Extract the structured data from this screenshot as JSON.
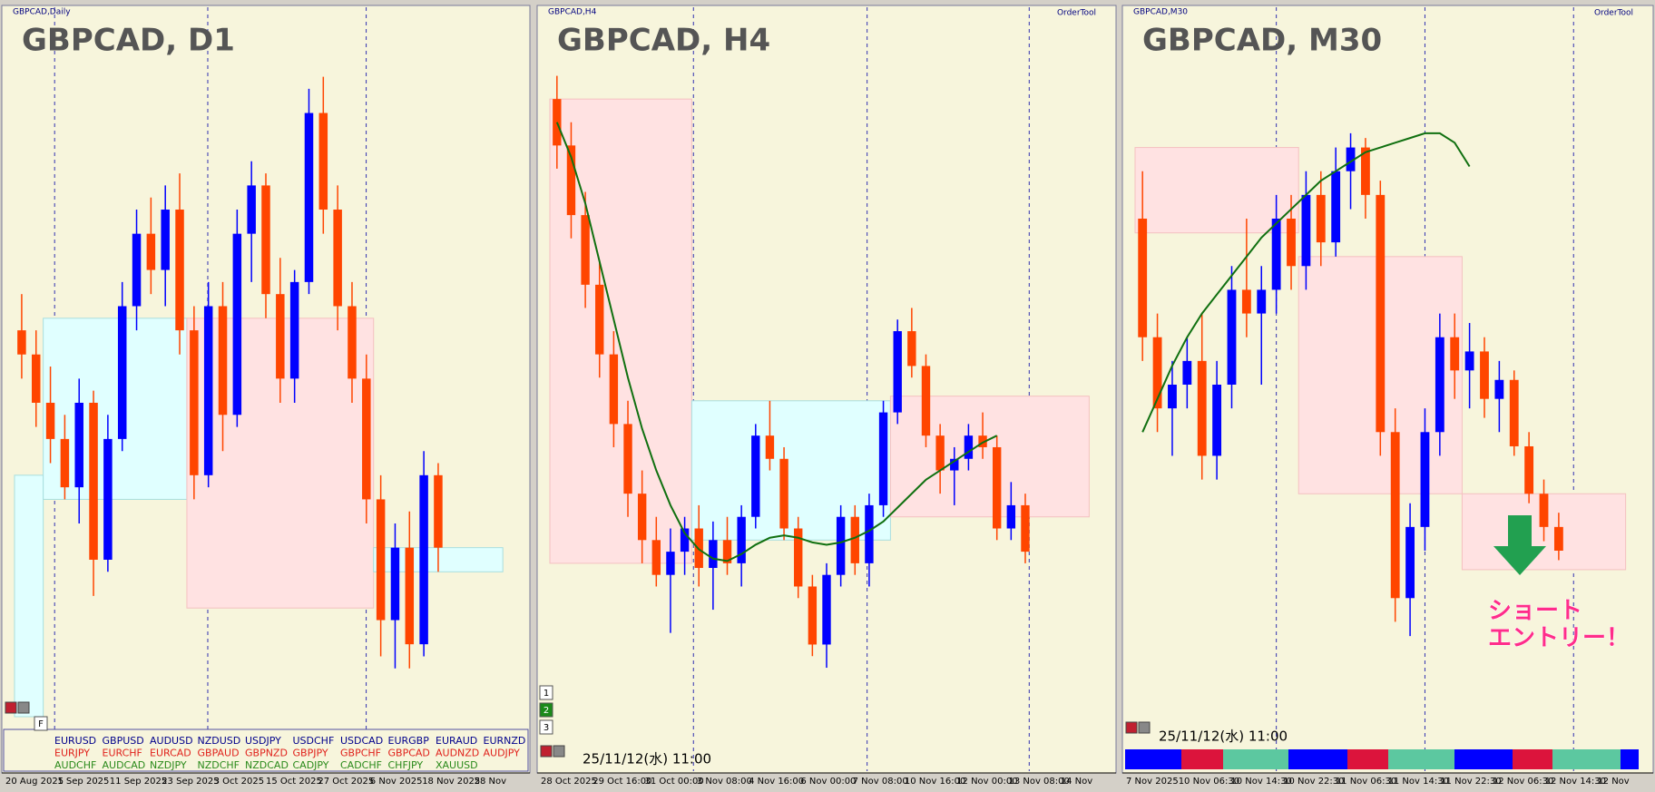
{
  "chart_data": [
    {
      "type": "candlestick",
      "title": "GBPCAD, D1",
      "window_label": "GBPCAD,Daily",
      "up_color": "#0000ff",
      "down_color": "#ff4500",
      "ylim": [
        1.82,
        1.875
      ],
      "x_labels": [
        "20 Aug 2025",
        "1 Sep 2025",
        "11 Sep 2025",
        "23 Sep 2025",
        "3 Oct 2025",
        "15 Oct 2025",
        "27 Oct 2025",
        "6 Nov 2025",
        "18 Nov 2025",
        "28 Nov"
      ],
      "candles": [
        [
          1.852,
          1.855,
          1.848,
          1.85
        ],
        [
          1.85,
          1.852,
          1.844,
          1.846
        ],
        [
          1.846,
          1.849,
          1.841,
          1.843
        ],
        [
          1.843,
          1.845,
          1.838,
          1.839
        ],
        [
          1.839,
          1.848,
          1.836,
          1.846
        ],
        [
          1.846,
          1.847,
          1.83,
          1.833
        ],
        [
          1.833,
          1.845,
          1.832,
          1.843
        ],
        [
          1.843,
          1.856,
          1.842,
          1.854
        ],
        [
          1.854,
          1.862,
          1.852,
          1.86
        ],
        [
          1.86,
          1.863,
          1.855,
          1.857
        ],
        [
          1.857,
          1.864,
          1.854,
          1.862
        ],
        [
          1.862,
          1.865,
          1.85,
          1.852
        ],
        [
          1.852,
          1.854,
          1.838,
          1.84
        ],
        [
          1.84,
          1.856,
          1.839,
          1.854
        ],
        [
          1.854,
          1.856,
          1.842,
          1.845
        ],
        [
          1.845,
          1.862,
          1.844,
          1.86
        ],
        [
          1.86,
          1.866,
          1.856,
          1.864
        ],
        [
          1.864,
          1.865,
          1.853,
          1.855
        ],
        [
          1.855,
          1.858,
          1.846,
          1.848
        ],
        [
          1.848,
          1.857,
          1.846,
          1.856
        ],
        [
          1.856,
          1.872,
          1.855,
          1.87
        ],
        [
          1.87,
          1.873,
          1.86,
          1.862
        ],
        [
          1.862,
          1.864,
          1.852,
          1.854
        ],
        [
          1.854,
          1.856,
          1.846,
          1.848
        ],
        [
          1.848,
          1.85,
          1.836,
          1.838
        ],
        [
          1.838,
          1.84,
          1.825,
          1.828
        ],
        [
          1.828,
          1.836,
          1.824,
          1.834
        ],
        [
          1.834,
          1.837,
          1.824,
          1.826
        ],
        [
          1.826,
          1.842,
          1.825,
          1.84
        ],
        [
          1.84,
          1.841,
          1.832,
          1.834
        ]
      ],
      "zones": [
        {
          "from": 0,
          "to": 2,
          "low": 1.82,
          "high": 1.84,
          "color": "#e0ffff"
        },
        {
          "from": 2,
          "to": 12,
          "low": 1.838,
          "high": 1.853,
          "color": "#e0ffff"
        },
        {
          "from": 12,
          "to": 25,
          "low": 1.829,
          "high": 1.853,
          "color": "#ffe2e2"
        },
        {
          "from": 25,
          "to": 34,
          "low": 1.832,
          "high": 1.834,
          "color": "#e0ffff"
        }
      ],
      "pairs": [
        {
          "color": "#00008b",
          "names": [
            "EURUSD",
            "GBPUSD",
            "AUDUSD",
            "NZDUSD",
            "USDJPY",
            "USDCHF",
            "USDCAD",
            "EURGBP",
            "EURAUD",
            "EURNZD"
          ]
        },
        {
          "color": "#e0201a",
          "names": [
            "EURJPY",
            "EURCHF",
            "EURCAD",
            "GBPAUD",
            "GBPNZD",
            "GBPJPY",
            "GBPCHF",
            "GBPCAD",
            "AUDNZD",
            "AUDJPY"
          ]
        },
        {
          "color": "#2a8a1a",
          "names": [
            "AUDCHF",
            "AUDCAD",
            "NZDJPY",
            "NZDCHF",
            "NZDCAD",
            "CADJPY",
            "CADCHF",
            "CHFJPY",
            "XAUUSD"
          ]
        }
      ],
      "buttons": [
        "F"
      ]
    },
    {
      "type": "candlestick",
      "title": "GBPCAD, H4",
      "window_label": "GBPCAD,H4",
      "tool_label": "OrderTool",
      "up_color": "#0000ff",
      "down_color": "#ff4500",
      "ma_color": "#107010",
      "ylim": [
        1.833,
        1.862
      ],
      "x_labels": [
        "28 Oct 2025",
        "29 Oct 16:00",
        "31 Oct 00:00",
        "3 Nov 08:00",
        "4 Nov 16:00",
        "6 Nov 00:00",
        "7 Nov 08:00",
        "10 Nov 16:00",
        "12 Nov 00:00",
        "13 Nov 08:00",
        "14 Nov"
      ],
      "candles": [
        [
          1.86,
          1.861,
          1.857,
          1.858
        ],
        [
          1.858,
          1.859,
          1.854,
          1.855
        ],
        [
          1.855,
          1.856,
          1.851,
          1.852
        ],
        [
          1.852,
          1.853,
          1.848,
          1.849
        ],
        [
          1.849,
          1.85,
          1.845,
          1.846
        ],
        [
          1.846,
          1.847,
          1.842,
          1.843
        ],
        [
          1.843,
          1.844,
          1.84,
          1.841
        ],
        [
          1.841,
          1.842,
          1.839,
          1.8395
        ],
        [
          1.8395,
          1.8415,
          1.837,
          1.8405
        ],
        [
          1.8405,
          1.842,
          1.8395,
          1.8415
        ],
        [
          1.8415,
          1.8425,
          1.839,
          1.8398
        ],
        [
          1.8398,
          1.8418,
          1.838,
          1.841
        ],
        [
          1.841,
          1.842,
          1.8395,
          1.84
        ],
        [
          1.84,
          1.8425,
          1.839,
          1.842
        ],
        [
          1.842,
          1.846,
          1.8415,
          1.8455
        ],
        [
          1.8455,
          1.847,
          1.844,
          1.8445
        ],
        [
          1.8445,
          1.845,
          1.841,
          1.8415
        ],
        [
          1.8415,
          1.842,
          1.8385,
          1.839
        ],
        [
          1.839,
          1.8395,
          1.836,
          1.8365
        ],
        [
          1.8365,
          1.84,
          1.8355,
          1.8395
        ],
        [
          1.8395,
          1.8425,
          1.839,
          1.842
        ],
        [
          1.842,
          1.8425,
          1.8395,
          1.84
        ],
        [
          1.84,
          1.843,
          1.839,
          1.8425
        ],
        [
          1.8425,
          1.847,
          1.842,
          1.8465
        ],
        [
          1.8465,
          1.8505,
          1.846,
          1.85
        ],
        [
          1.85,
          1.851,
          1.848,
          1.8485
        ],
        [
          1.8485,
          1.849,
          1.845,
          1.8455
        ],
        [
          1.8455,
          1.846,
          1.843,
          1.844
        ],
        [
          1.844,
          1.845,
          1.8425,
          1.8445
        ],
        [
          1.8445,
          1.846,
          1.844,
          1.8455
        ],
        [
          1.8455,
          1.8465,
          1.8445,
          1.845
        ],
        [
          1.845,
          1.8455,
          1.841,
          1.8415
        ],
        [
          1.8415,
          1.8435,
          1.841,
          1.8425
        ],
        [
          1.8425,
          1.843,
          1.84,
          1.8405
        ]
      ],
      "ma": [
        1.859,
        1.8575,
        1.8555,
        1.853,
        1.8505,
        1.848,
        1.8458,
        1.844,
        1.8425,
        1.8413,
        1.8406,
        1.8402,
        1.8401,
        1.8404,
        1.8408,
        1.8411,
        1.8412,
        1.8411,
        1.8409,
        1.8408,
        1.8409,
        1.8411,
        1.8414,
        1.8418,
        1.8424,
        1.843,
        1.8436,
        1.844,
        1.8444,
        1.8448,
        1.8452,
        1.8455,
        null,
        null
      ],
      "zones": [
        {
          "from": 0,
          "to": 10,
          "low": 1.84,
          "high": 1.86,
          "color": "#ffe2e2"
        },
        {
          "from": 10,
          "to": 24,
          "low": 1.841,
          "high": 1.847,
          "color": "#e0ffff"
        },
        {
          "from": 24,
          "to": 38,
          "low": 1.842,
          "high": 1.8472,
          "color": "#ffe2e2"
        }
      ],
      "timestamp": "25/11/12(水) 11:00",
      "buttons": [
        "1",
        "2",
        "3"
      ]
    },
    {
      "type": "candlestick",
      "title": "GBPCAD, M30",
      "window_label": "GBPCAD,M30",
      "tool_label": "OrderTool",
      "up_color": "#0000ff",
      "down_color": "#ff4500",
      "ma_color": "#107010",
      "ylim": [
        1.8385,
        1.8525
      ],
      "x_labels": [
        "7 Nov 2025",
        "10 Nov 06:30",
        "10 Nov 14:30",
        "10 Nov 22:30",
        "11 Nov 06:30",
        "11 Nov 14:30",
        "11 Nov 22:30",
        "12 Nov 06:30",
        "12 Nov 14:30",
        "12 Nov"
      ],
      "candles": [
        [
          1.849,
          1.85,
          1.846,
          1.8465
        ],
        [
          1.8465,
          1.847,
          1.8445,
          1.845
        ],
        [
          1.845,
          1.846,
          1.844,
          1.8455
        ],
        [
          1.8455,
          1.8465,
          1.845,
          1.846
        ],
        [
          1.846,
          1.847,
          1.8435,
          1.844
        ],
        [
          1.844,
          1.846,
          1.8435,
          1.8455
        ],
        [
          1.8455,
          1.848,
          1.845,
          1.8475
        ],
        [
          1.8475,
          1.849,
          1.8465,
          1.847
        ],
        [
          1.847,
          1.848,
          1.8455,
          1.8475
        ],
        [
          1.8475,
          1.8495,
          1.847,
          1.849
        ],
        [
          1.849,
          1.8495,
          1.8475,
          1.848
        ],
        [
          1.848,
          1.85,
          1.8475,
          1.8495
        ],
        [
          1.8495,
          1.85,
          1.848,
          1.8485
        ],
        [
          1.8485,
          1.8505,
          1.8482,
          1.85
        ],
        [
          1.85,
          1.8508,
          1.8492,
          1.8505
        ],
        [
          1.8505,
          1.8507,
          1.849,
          1.8495
        ],
        [
          1.8495,
          1.8498,
          1.844,
          1.8445
        ],
        [
          1.8445,
          1.845,
          1.8405,
          1.841
        ],
        [
          1.841,
          1.843,
          1.8402,
          1.8425
        ],
        [
          1.8425,
          1.845,
          1.842,
          1.8445
        ],
        [
          1.8445,
          1.847,
          1.844,
          1.8465
        ],
        [
          1.8465,
          1.847,
          1.8452,
          1.8458
        ],
        [
          1.8458,
          1.8468,
          1.845,
          1.8462
        ],
        [
          1.8462,
          1.8465,
          1.8448,
          1.8452
        ],
        [
          1.8452,
          1.846,
          1.8445,
          1.8456
        ],
        [
          1.8456,
          1.8458,
          1.844,
          1.8442
        ],
        [
          1.8442,
          1.8445,
          1.843,
          1.8432
        ],
        [
          1.8432,
          1.8435,
          1.8422,
          1.8425
        ],
        [
          1.8425,
          1.8428,
          1.8418,
          1.842
        ]
      ],
      "ma": [
        1.8445,
        1.8452,
        1.8459,
        1.8465,
        1.847,
        1.8474,
        1.8478,
        1.8482,
        1.8486,
        1.8489,
        1.8492,
        1.8495,
        1.8498,
        1.85,
        1.8502,
        1.8504,
        1.8505,
        1.8506,
        1.8507,
        1.8508,
        1.8508,
        1.8506,
        1.8501,
        null,
        null,
        null,
        null,
        null,
        null
      ],
      "zones": [
        {
          "from": 0,
          "to": 11,
          "low": 1.8487,
          "high": 1.8505,
          "color": "#ffe2e2"
        },
        {
          "from": 11,
          "to": 22,
          "low": 1.8432,
          "high": 1.8482,
          "color": "#ffe2e2"
        },
        {
          "from": 22,
          "to": 33,
          "low": 1.8416,
          "high": 1.8432,
          "color": "#ffe2e2"
        }
      ],
      "timestamp": "25/11/12(水) 11:00",
      "annotation": [
        "ショート",
        "エントリー！"
      ]
    }
  ]
}
